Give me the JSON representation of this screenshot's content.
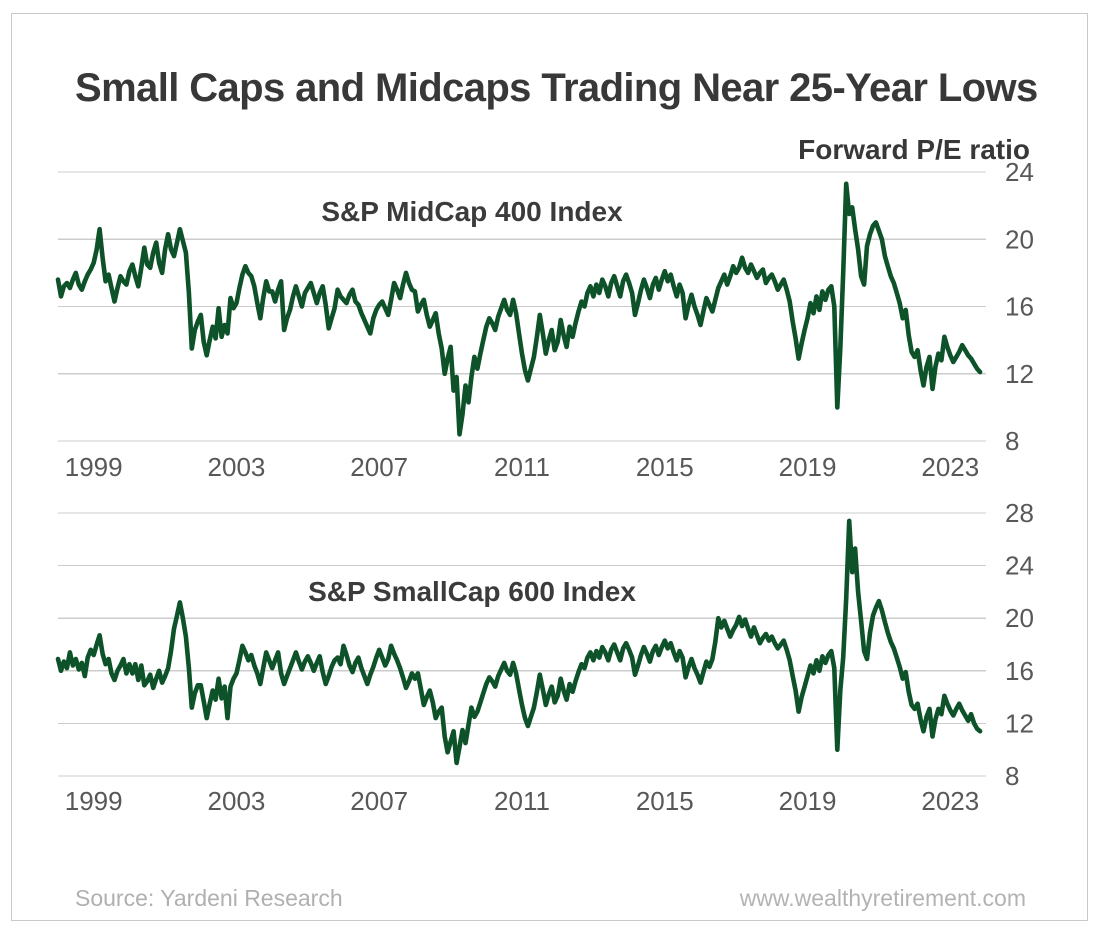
{
  "title": "Small Caps and Midcaps Trading Near 25-Year Lows",
  "axis_unit_label": "Forward P/E ratio",
  "footer": {
    "source": "Source: Yardeni Research",
    "website": "www.wealthyretirement.com"
  },
  "colors": {
    "line": "#0d5229",
    "grid": "#cccccc",
    "title_text": "#383838",
    "tick_text": "#58585a",
    "footer_text": "#b0b0b0",
    "card_border": "#c9c9c9"
  },
  "chart_data": [
    {
      "type": "line",
      "title": "S&P MidCap 400 Index",
      "ylabel": "Forward P/E ratio",
      "x_start_year": 1998,
      "points_per_year": 12,
      "xlim": [
        1998,
        2024
      ],
      "ylim": [
        8,
        24
      ],
      "yticks": [
        24,
        20,
        16,
        12,
        8
      ],
      "xticks": [
        1999,
        2003,
        2007,
        2011,
        2015,
        2019,
        2023
      ],
      "grid": true,
      "legend_position": "none",
      "values": [
        17.6,
        16.6,
        17.2,
        17.4,
        17.1,
        17.6,
        18.0,
        17.3,
        17.0,
        17.5,
        17.9,
        18.2,
        18.6,
        19.4,
        20.6,
        18.9,
        17.5,
        17.9,
        17.1,
        16.3,
        17.1,
        17.8,
        17.5,
        17.3,
        18.1,
        18.5,
        17.8,
        17.2,
        18.3,
        19.5,
        18.5,
        18.3,
        19.2,
        19.8,
        18.6,
        18.0,
        19.4,
        20.3,
        19.4,
        19.0,
        19.8,
        20.6,
        19.9,
        19.2,
        16.8,
        13.5,
        14.6,
        15.1,
        15.5,
        13.9,
        13.1,
        14.0,
        14.8,
        14.1,
        15.9,
        14.2,
        14.9,
        14.4,
        16.5,
        15.9,
        16.2,
        17.1,
        17.9,
        18.4,
        18.0,
        17.8,
        17.2,
        16.2,
        15.3,
        16.5,
        17.5,
        16.9,
        16.9,
        16.3,
        17.0,
        17.5,
        14.6,
        15.3,
        15.8,
        16.6,
        17.2,
        16.6,
        16.0,
        16.8,
        17.1,
        17.4,
        16.8,
        16.2,
        16.8,
        17.2,
        16.1,
        14.7,
        15.3,
        15.9,
        17.0,
        16.6,
        16.4,
        16.2,
        16.7,
        17.0,
        16.3,
        16.1,
        15.6,
        15.2,
        14.8,
        14.4,
        15.3,
        15.8,
        16.1,
        16.3,
        15.9,
        15.5,
        16.4,
        17.4,
        17.0,
        16.5,
        17.3,
        18.0,
        17.4,
        17.0,
        16.9,
        15.7,
        16.1,
        16.4,
        15.5,
        14.8,
        15.2,
        15.6,
        14.4,
        13.5,
        12.0,
        12.9,
        13.6,
        11.0,
        11.8,
        8.4,
        9.6,
        11.3,
        10.3,
        11.8,
        13.0,
        12.3,
        13.2,
        14.0,
        14.8,
        15.3,
        15.0,
        14.6,
        15.4,
        15.9,
        16.4,
        15.8,
        15.5,
        16.4,
        15.6,
        14.4,
        13.2,
        12.2,
        11.6,
        12.3,
        13.0,
        14.2,
        15.5,
        14.4,
        13.2,
        14.0,
        14.6,
        13.4,
        13.9,
        15.2,
        14.3,
        13.6,
        14.8,
        14.2,
        15.0,
        15.7,
        16.3,
        16.0,
        16.8,
        17.2,
        16.6,
        17.3,
        16.8,
        17.6,
        17.2,
        16.6,
        17.4,
        17.8,
        17.2,
        16.6,
        17.5,
        17.9,
        17.4,
        16.8,
        15.5,
        16.2,
        17.0,
        17.6,
        17.1,
        16.5,
        17.3,
        17.7,
        17.0,
        17.6,
        18.1,
        17.5,
        17.9,
        17.2,
        16.6,
        17.3,
        16.8,
        15.3,
        16.1,
        16.7,
        16.0,
        15.5,
        14.9,
        15.7,
        16.5,
        16.1,
        15.7,
        16.4,
        17.1,
        17.5,
        17.9,
        17.3,
        17.8,
        18.4,
        18.0,
        18.3,
        18.9,
        18.3,
        18.0,
        18.5,
        18.1,
        17.7,
        18.0,
        18.2,
        17.4,
        17.7,
        17.9,
        17.5,
        17.0,
        17.3,
        17.6,
        17.0,
        16.3,
        15.1,
        14.1,
        12.9,
        13.8,
        14.6,
        15.3,
        16.2,
        15.6,
        16.6,
        15.8,
        16.9,
        16.4,
        17.0,
        17.2,
        16.0,
        10.0,
        13.5,
        18.0,
        23.3,
        21.5,
        21.9,
        20.6,
        19.4,
        17.8,
        17.3,
        19.6,
        20.3,
        20.8,
        21.0,
        20.5,
        20.0,
        19.0,
        18.4,
        17.8,
        17.4,
        16.8,
        16.2,
        15.3,
        15.8,
        14.3,
        13.3,
        13.0,
        13.4,
        12.2,
        11.3,
        12.4,
        13.0,
        11.1,
        12.4,
        13.2,
        12.8,
        14.2,
        13.6,
        13.1,
        12.7,
        13.0,
        13.3,
        13.7,
        13.4,
        13.1,
        12.9,
        12.6,
        12.3,
        12.1
      ]
    },
    {
      "type": "line",
      "title": "S&P SmallCap 600 Index",
      "ylabel": "Forward P/E ratio",
      "x_start_year": 1998,
      "points_per_year": 12,
      "xlim": [
        1998,
        2024
      ],
      "ylim": [
        8,
        28
      ],
      "yticks": [
        28,
        24,
        20,
        16,
        12,
        8
      ],
      "xticks": [
        1999,
        2003,
        2007,
        2011,
        2015,
        2019,
        2023
      ],
      "grid": true,
      "legend_position": "none",
      "values": [
        16.9,
        16.0,
        16.7,
        16.2,
        17.4,
        16.4,
        16.9,
        16.1,
        16.6,
        15.6,
        17.0,
        17.6,
        17.2,
        18.0,
        18.7,
        17.3,
        16.5,
        16.9,
        15.8,
        15.3,
        16.0,
        16.4,
        16.9,
        15.8,
        16.5,
        15.8,
        16.5,
        15.3,
        16.4,
        14.9,
        15.2,
        15.7,
        14.7,
        15.4,
        16.0,
        15.1,
        15.6,
        16.2,
        17.5,
        19.2,
        20.2,
        21.2,
        20.0,
        18.6,
        16.2,
        13.2,
        14.3,
        14.9,
        14.9,
        13.7,
        12.4,
        13.5,
        14.5,
        13.8,
        15.4,
        13.9,
        14.8,
        12.4,
        14.8,
        15.4,
        15.8,
        16.8,
        17.9,
        17.4,
        16.8,
        17.2,
        16.4,
        15.8,
        15.0,
        16.2,
        17.4,
        16.8,
        16.2,
        16.8,
        17.4,
        15.8,
        15.0,
        15.6,
        16.2,
        16.8,
        17.4,
        16.7,
        16.1,
        16.7,
        17.1,
        16.6,
        16.0,
        16.6,
        17.1,
        15.9,
        15.0,
        15.6,
        16.3,
        16.8,
        17.0,
        16.5,
        17.9,
        17.2,
        16.4,
        15.9,
        16.6,
        17.0,
        16.2,
        15.6,
        15.0,
        15.7,
        16.3,
        17.0,
        17.6,
        17.0,
        16.4,
        16.9,
        17.9,
        17.3,
        16.8,
        16.2,
        15.5,
        14.7,
        15.2,
        15.8,
        15.4,
        15.8,
        14.6,
        13.4,
        14.0,
        14.5,
        13.6,
        12.4,
        12.9,
        13.2,
        11.0,
        9.8,
        10.6,
        11.4,
        9.0,
        10.2,
        11.5,
        10.5,
        11.9,
        13.2,
        12.5,
        12.9,
        13.6,
        14.3,
        15.0,
        15.5,
        15.2,
        14.8,
        15.6,
        16.1,
        16.6,
        16.0,
        15.7,
        16.6,
        15.8,
        14.6,
        13.4,
        12.4,
        11.8,
        12.5,
        13.2,
        14.4,
        15.7,
        14.6,
        13.4,
        14.2,
        14.8,
        13.6,
        14.1,
        15.4,
        14.5,
        13.8,
        15.0,
        14.4,
        15.2,
        15.9,
        16.5,
        16.2,
        17.0,
        17.4,
        16.8,
        17.5,
        17.0,
        17.8,
        17.4,
        16.8,
        17.6,
        18.0,
        17.4,
        16.8,
        17.7,
        18.1,
        17.6,
        17.0,
        15.7,
        16.4,
        17.2,
        17.8,
        17.3,
        16.7,
        17.5,
        17.9,
        17.2,
        17.8,
        18.3,
        17.7,
        18.1,
        17.4,
        16.8,
        17.5,
        17.0,
        15.5,
        16.3,
        16.9,
        16.2,
        15.7,
        15.1,
        15.9,
        16.7,
        16.3,
        16.9,
        18.2,
        20.0,
        19.3,
        19.8,
        19.2,
        18.6,
        19.1,
        19.5,
        20.1,
        19.4,
        19.9,
        19.2,
        18.6,
        19.3,
        18.7,
        18.1,
        18.5,
        18.8,
        18.3,
        18.6,
        18.1,
        17.7,
        18.0,
        18.3,
        17.6,
        16.8,
        15.6,
        14.5,
        12.9,
        14.0,
        14.8,
        15.6,
        16.4,
        15.8,
        16.8,
        16.0,
        17.1,
        16.6,
        17.2,
        17.5,
        16.2,
        10.0,
        14.5,
        17.0,
        21.5,
        27.4,
        23.5,
        25.3,
        22.0,
        19.8,
        17.5,
        16.9,
        18.9,
        20.2,
        20.8,
        21.3,
        20.6,
        19.7,
        18.9,
        18.2,
        17.7,
        17.0,
        16.3,
        15.4,
        15.9,
        14.4,
        13.4,
        13.1,
        13.5,
        12.3,
        11.4,
        12.5,
        13.1,
        11.0,
        12.3,
        13.1,
        12.7,
        14.1,
        13.5,
        13.0,
        12.6,
        13.1,
        13.5,
        13.0,
        12.6,
        12.2,
        12.7,
        12.0,
        11.6,
        11.4
      ]
    }
  ]
}
